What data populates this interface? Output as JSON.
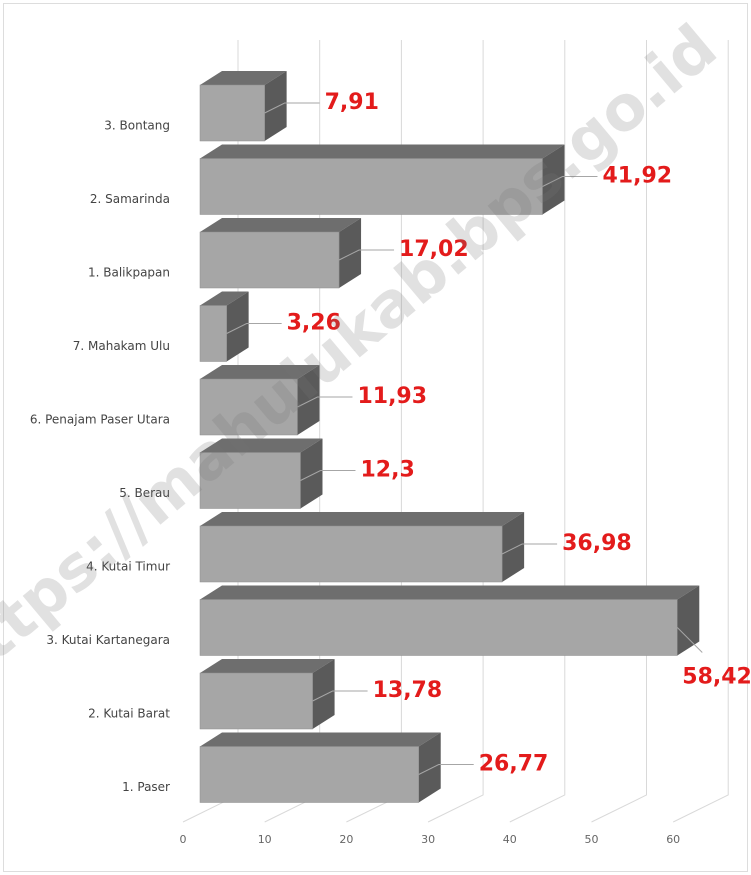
{
  "chart_data": {
    "type": "bar",
    "orientation": "horizontal",
    "categories": [
      "3. Bontang",
      "2. Samarinda",
      "1. Balikpapan",
      "7. Mahakam Ulu",
      "6. Penajam Paser Utara",
      "5. Berau",
      "4. Kutai Timur",
      "3. Kutai  Kartanegara",
      "2. Kutai Barat",
      "1. Paser"
    ],
    "values": [
      7.91,
      41.92,
      17.02,
      3.26,
      11.93,
      12.3,
      36.98,
      58.42,
      13.78,
      26.77
    ],
    "value_labels": [
      "7,91",
      "41,92",
      "17,02",
      "3,26",
      "11,93",
      "12,3",
      "36,98",
      "58,42",
      "13,78",
      "26,77"
    ],
    "color": "#a6a6a6",
    "xlim": [
      0,
      70
    ],
    "xticks": [
      0,
      10,
      20,
      30,
      40,
      50,
      60
    ],
    "grid": true,
    "watermark": "https://mahulukab.bps.go.id"
  }
}
